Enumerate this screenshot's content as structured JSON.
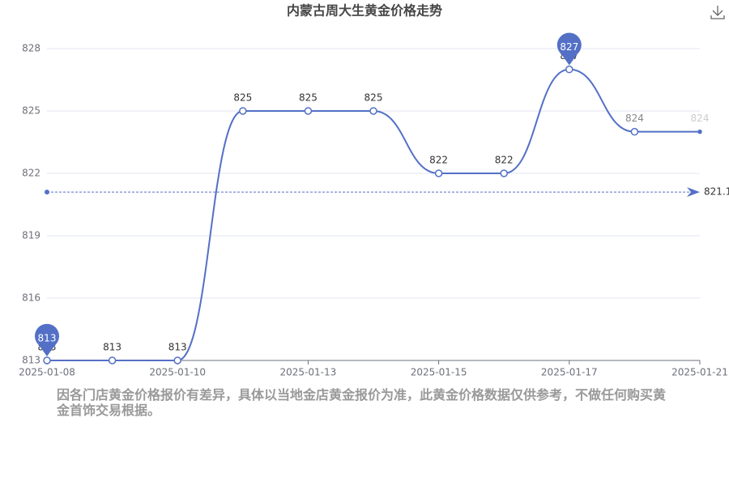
{
  "chart_data": {
    "type": "line",
    "title": "内蒙古周大生黄金价格走势",
    "categories": [
      "2025-01-08",
      null,
      "2025-01-10",
      null,
      "2025-01-13",
      null,
      "2025-01-15",
      null,
      "2025-01-17",
      null,
      "2025-01-21"
    ],
    "values": [
      813,
      813,
      813,
      825,
      825,
      825,
      822,
      822,
      827,
      824,
      824
    ],
    "color": "#5470c6",
    "ylim": [
      813,
      828
    ],
    "yticks": [
      813,
      816,
      819,
      822,
      825,
      828
    ],
    "grid": true,
    "mean_line": 821.1,
    "note": "因各门店黄金价格报价有差异，具体以当地金店黄金报价为准，此黄金价格数据仅供参考，不做任何购买黄金首饰交易根据。"
  }
}
